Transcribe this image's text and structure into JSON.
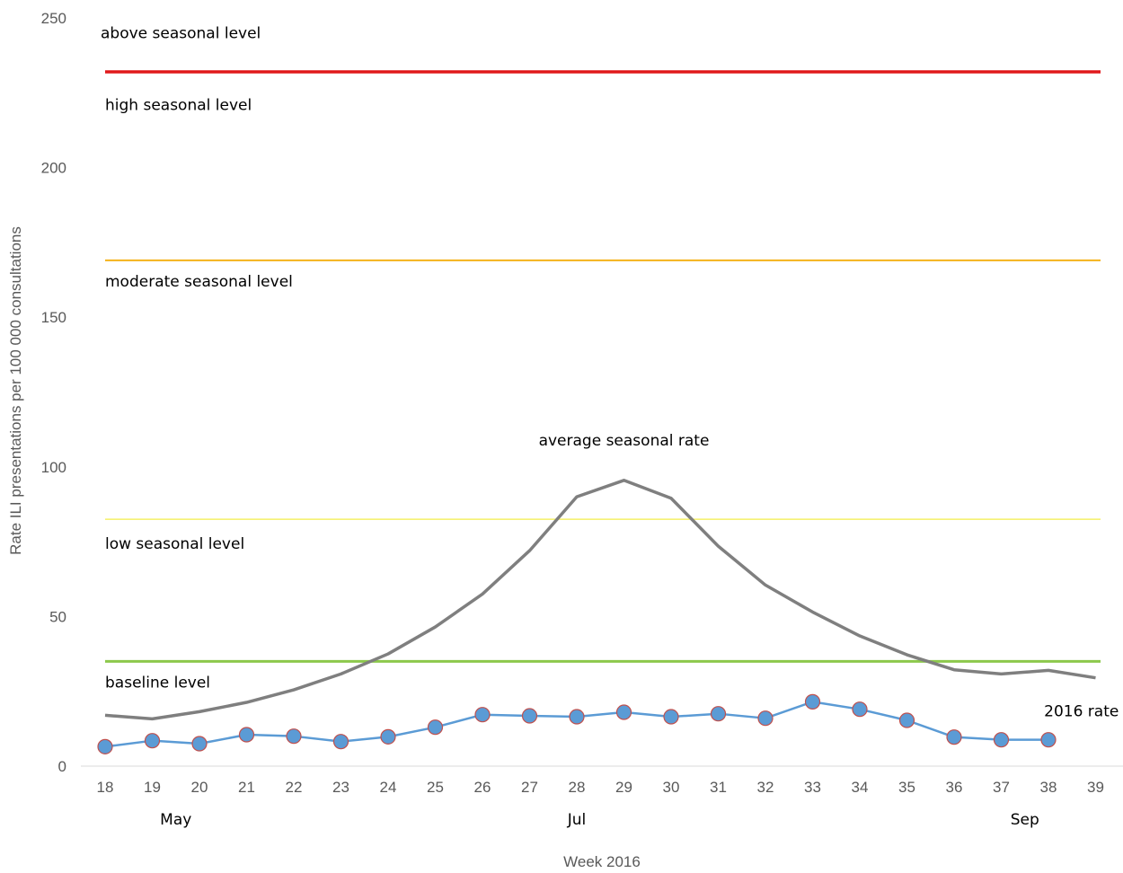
{
  "chart_data": {
    "type": "line",
    "title": "",
    "xlabel": "Week 2016",
    "ylabel": "Rate ILI presentations per 100 000 consultations",
    "ylim": [
      0,
      250
    ],
    "yticks": [
      0,
      50,
      100,
      150,
      200,
      250
    ],
    "grid": false,
    "x": [
      18,
      19,
      20,
      21,
      22,
      23,
      24,
      25,
      26,
      27,
      28,
      29,
      30,
      31,
      32,
      33,
      34,
      35,
      36,
      37,
      38,
      39
    ],
    "month_labels": [
      {
        "label": "May",
        "week": 19.5
      },
      {
        "label": "Jul",
        "week": 28
      },
      {
        "label": "Sep",
        "week": 37.5
      }
    ],
    "thresholds": [
      {
        "name": "above seasonal level",
        "value": 232,
        "color": "#e0191b"
      },
      {
        "name": "high seasonal level",
        "value": 169,
        "color": "#f5b21a"
      },
      {
        "name": "moderate seasonal level",
        "value": 82.5,
        "color": "#f3ee4a"
      },
      {
        "name": "low seasonal level",
        "value": 35,
        "color": "#8cc84b"
      }
    ],
    "band_labels": [
      {
        "text": "above seasonal level",
        "value": 245
      },
      {
        "text": "high seasonal level",
        "value": 221
      },
      {
        "text": "moderate seasonal level",
        "value": 162
      },
      {
        "text": "low seasonal level",
        "value": 74.5
      },
      {
        "text": "baseline level",
        "value": 28
      }
    ],
    "series": [
      {
        "name": "average seasonal rate",
        "color": "#7f7f7f",
        "values": [
          17,
          15.8,
          18.2,
          21.3,
          25.5,
          30.8,
          37.5,
          46.5,
          57.5,
          72,
          90,
          95.5,
          89.5,
          73.5,
          60.5,
          51.5,
          43.5,
          37.2,
          32.2,
          30.8,
          32,
          29.5
        ]
      },
      {
        "name": "2016 rate",
        "color": "#5b9bd5",
        "marker_edge": "#c0504d",
        "values": [
          6.5,
          8.5,
          7.5,
          10.5,
          10,
          8.2,
          9.8,
          13,
          17.2,
          16.8,
          16.5,
          18,
          16.5,
          17.5,
          16,
          21.5,
          19,
          15.3,
          9.7,
          8.8,
          8.8,
          null
        ]
      }
    ],
    "series_label_positions": [
      {
        "name": "average seasonal rate",
        "week": 29,
        "value": 109
      },
      {
        "name": "2016 rate",
        "week": 38.7,
        "value": 18.5
      }
    ]
  }
}
